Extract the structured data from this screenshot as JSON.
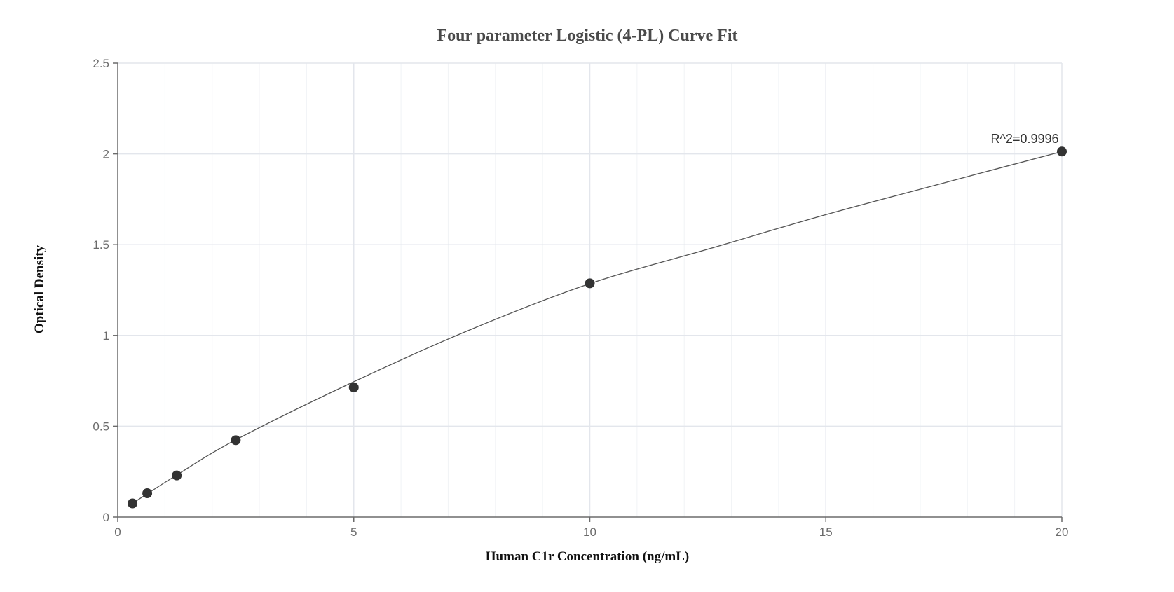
{
  "chart_data": {
    "type": "scatter",
    "title": "Four parameter Logistic (4-PL) Curve Fit",
    "xlabel": "Human C1r Concentration (ng/mL)",
    "ylabel": "Optical Density",
    "xlim": [
      0,
      20
    ],
    "ylim": [
      0,
      2.5
    ],
    "x_ticks": [
      "0",
      "5",
      "10",
      "15",
      "20"
    ],
    "y_ticks": [
      "0",
      "0.5",
      "1",
      "1.5",
      "2",
      "2.5"
    ],
    "grid": true,
    "legend": "none",
    "series": [
      {
        "x": [
          0.3125,
          0.625,
          1.25,
          2.5,
          5,
          10,
          20
        ],
        "y": [
          0.075,
          0.131,
          0.229,
          0.423,
          0.714,
          1.287,
          2.013
        ]
      }
    ],
    "fit_curve": {
      "model": "4PL",
      "x": [
        0.3125,
        0.625,
        1.25,
        2.5,
        5,
        7.5,
        10,
        12.5,
        15,
        17.5,
        20
      ],
      "y": [
        0.075,
        0.128,
        0.231,
        0.425,
        0.745,
        1.035,
        1.285,
        1.475,
        1.665,
        1.84,
        2.013
      ]
    },
    "annotations": [
      {
        "text": "R^2=0.9996",
        "x": 20,
        "y": 2.013
      }
    ],
    "colors": {
      "marker": "#333333",
      "curve": "#555555",
      "grid_major": "#e3e6ec",
      "grid_minor": "#f1f3f6",
      "axis": "#6b6b6b"
    }
  }
}
